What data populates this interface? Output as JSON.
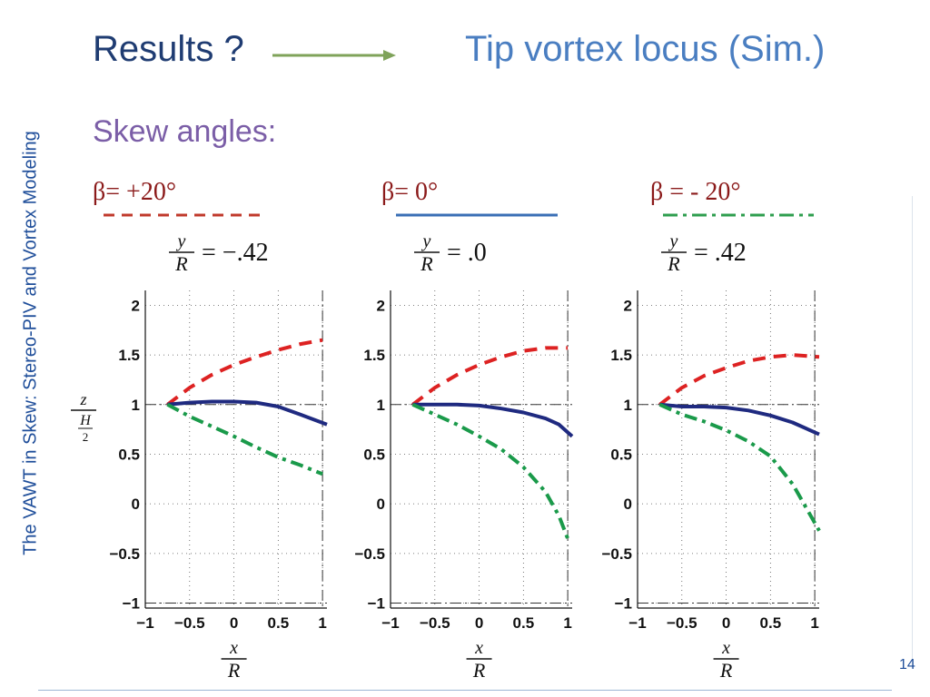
{
  "slide": {
    "side_title": "The VAWT in Skew:  Stereo-PIV and Vortex Modeling",
    "title_left": "Results ?",
    "title_right": "Tip vortex locus (Sim.)",
    "subtitle": "Skew angles:",
    "page_number": "14",
    "colors": {
      "title_dark": "#1f3c72",
      "title_light": "#4a7ec1",
      "subtitle": "#7b5ea7",
      "arrow": "#7fa35a",
      "beta_text": "#8b1a1a",
      "side_title": "#1f4e9a"
    }
  },
  "legend": [
    {
      "label": "β=  +20°",
      "style": "dashed",
      "color": "#c0392b"
    },
    {
      "label": "β=  0°",
      "style": "solid",
      "color": "#3a6fb5"
    },
    {
      "label": "β = - 20°",
      "style": "dashdot",
      "color": "#2e9e4e"
    }
  ],
  "chart_data": [
    {
      "type": "line",
      "title": "y/R = −.42",
      "xlabel": "x/R",
      "ylabel": "z/(H/2)",
      "xlim": [
        -1,
        1.05
      ],
      "ylim": [
        -1.05,
        2.15
      ],
      "xticks": [
        "−1",
        "−0.5",
        "0",
        "0.5",
        "1"
      ],
      "yticks": [
        "2",
        "1.5",
        "1",
        "0.5",
        "0",
        "−0.5",
        "−1"
      ],
      "grid": true,
      "series": [
        {
          "name": "β=  +20°",
          "style": "dashed",
          "color": "#dd2222",
          "x": [
            -0.75,
            -0.5,
            -0.25,
            0,
            0.25,
            0.5,
            0.75,
            1.0
          ],
          "y": [
            1.0,
            1.17,
            1.3,
            1.4,
            1.48,
            1.55,
            1.61,
            1.65
          ]
        },
        {
          "name": "β=  0°",
          "style": "solid",
          "color": "#1f2a80",
          "x": [
            -0.75,
            -0.5,
            -0.25,
            0,
            0.25,
            0.5,
            0.75,
            1.05
          ],
          "y": [
            1.0,
            1.02,
            1.03,
            1.03,
            1.02,
            0.98,
            0.9,
            0.8
          ]
        },
        {
          "name": "β = - 20°",
          "style": "dashdot",
          "color": "#1a9a4a",
          "x": [
            -0.75,
            -0.5,
            -0.25,
            0,
            0.25,
            0.5,
            0.75,
            1.0
          ],
          "y": [
            1.0,
            0.88,
            0.78,
            0.68,
            0.57,
            0.47,
            0.39,
            0.3
          ]
        }
      ]
    },
    {
      "type": "line",
      "title": "y/R = .0",
      "xlabel": "x/R",
      "ylabel": "",
      "xlim": [
        -1,
        1.05
      ],
      "ylim": [
        -1.05,
        2.15
      ],
      "xticks": [
        "−1",
        "−0.5",
        "0",
        "0.5",
        "1"
      ],
      "yticks": [
        "2",
        "1.5",
        "1",
        "0.5",
        "0",
        "−0.5",
        "−1"
      ],
      "grid": true,
      "series": [
        {
          "name": "β=  +20°",
          "style": "dashed",
          "color": "#dd2222",
          "x": [
            -0.75,
            -0.5,
            -0.25,
            0,
            0.25,
            0.5,
            0.75,
            1.0
          ],
          "y": [
            1.0,
            1.17,
            1.3,
            1.4,
            1.48,
            1.54,
            1.57,
            1.57
          ]
        },
        {
          "name": "β=  0°",
          "style": "solid",
          "color": "#1f2a80",
          "x": [
            -0.75,
            -0.5,
            -0.25,
            0,
            0.25,
            0.5,
            0.75,
            0.9,
            1.05
          ],
          "y": [
            1.0,
            1.0,
            1.0,
            0.99,
            0.96,
            0.92,
            0.86,
            0.8,
            0.68
          ]
        },
        {
          "name": "β = - 20°",
          "style": "dashdot",
          "color": "#1a9a4a",
          "x": [
            -0.75,
            -0.5,
            -0.25,
            0,
            0.25,
            0.5,
            0.75,
            0.9,
            1.0
          ],
          "y": [
            1.0,
            0.9,
            0.8,
            0.68,
            0.55,
            0.37,
            0.12,
            -0.12,
            -0.35
          ]
        }
      ]
    },
    {
      "type": "line",
      "title": "y/R = .42",
      "xlabel": "x/R",
      "ylabel": "",
      "xlim": [
        -1,
        1.05
      ],
      "ylim": [
        -1.05,
        2.15
      ],
      "xticks": [
        "−1",
        "−0.5",
        "0",
        "0.5",
        "1"
      ],
      "yticks": [
        "2",
        "1.5",
        "1",
        "0.5",
        "0",
        "−0.5",
        "−1"
      ],
      "grid": true,
      "series": [
        {
          "name": "β=  +20°",
          "style": "dashed",
          "color": "#dd2222",
          "x": [
            -0.75,
            -0.5,
            -0.25,
            0,
            0.25,
            0.5,
            0.75,
            1.05
          ],
          "y": [
            1.0,
            1.17,
            1.29,
            1.37,
            1.44,
            1.48,
            1.5,
            1.48
          ]
        },
        {
          "name": "β=  0°",
          "style": "solid",
          "color": "#1f2a80",
          "x": [
            -0.75,
            -0.5,
            -0.25,
            0,
            0.25,
            0.5,
            0.75,
            1.05
          ],
          "y": [
            1.0,
            0.98,
            0.98,
            0.97,
            0.94,
            0.89,
            0.82,
            0.7
          ]
        },
        {
          "name": "β = - 20°",
          "style": "dashdot",
          "color": "#1a9a4a",
          "x": [
            -0.75,
            -0.5,
            -0.25,
            0,
            0.25,
            0.5,
            0.75,
            1.05
          ],
          "y": [
            1.0,
            0.9,
            0.83,
            0.74,
            0.63,
            0.48,
            0.2,
            -0.27
          ]
        }
      ]
    }
  ]
}
